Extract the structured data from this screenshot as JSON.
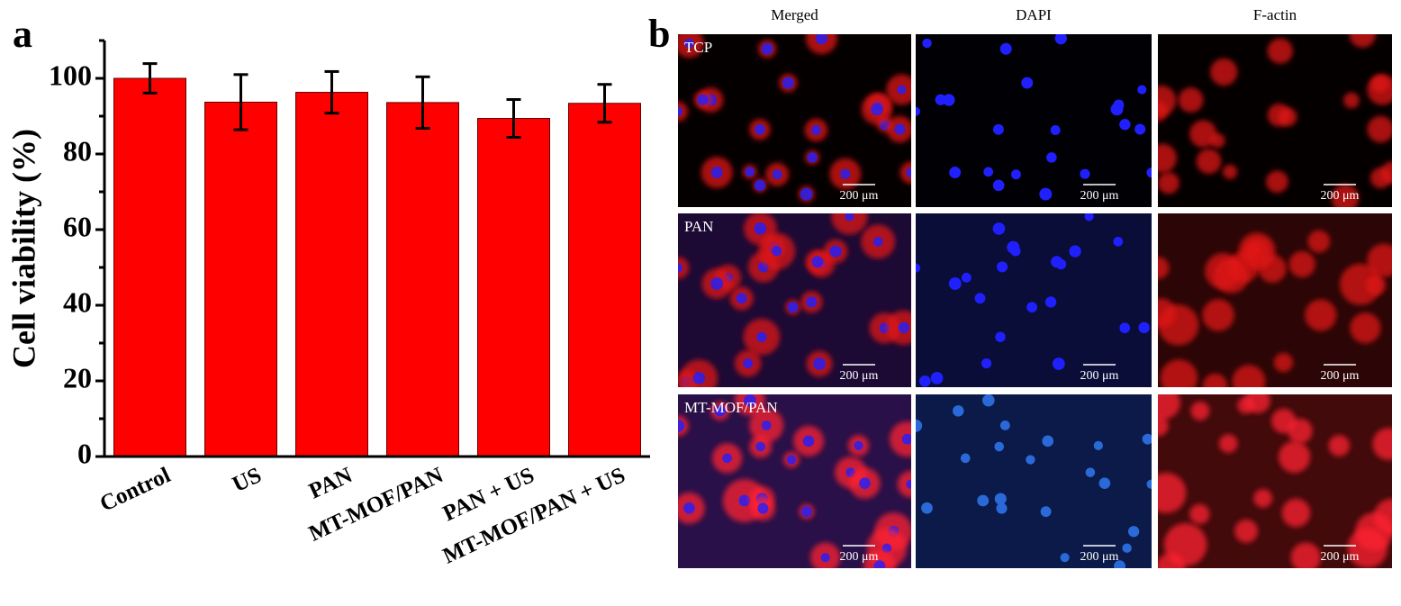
{
  "panel_labels": [
    "a",
    "b"
  ],
  "chart_data": {
    "type": "bar",
    "y_label": "Cell viability (%)",
    "categories": [
      "Control",
      "US",
      "PAN",
      "MT-MOF/PAN",
      "PAN + US",
      "MT-MOF/PAN + US"
    ],
    "values": [
      100,
      93.7,
      96.3,
      93.6,
      89.4,
      93.4
    ],
    "error": [
      3.9,
      7.3,
      5.5,
      6.8,
      5,
      5
    ],
    "color": "#ff0000",
    "ylim": [
      0,
      110
    ],
    "yticks": [
      0,
      20,
      40,
      60,
      80,
      100
    ],
    "yticks_minor": [
      10,
      30,
      50,
      70,
      90,
      110
    ]
  },
  "micrographs": {
    "columns": [
      "Merged",
      "DAPI",
      "F-actin"
    ],
    "rows": [
      "TCP",
      "PAN",
      "MT-MOF/PAN"
    ],
    "scale_bar": "200 μm"
  }
}
